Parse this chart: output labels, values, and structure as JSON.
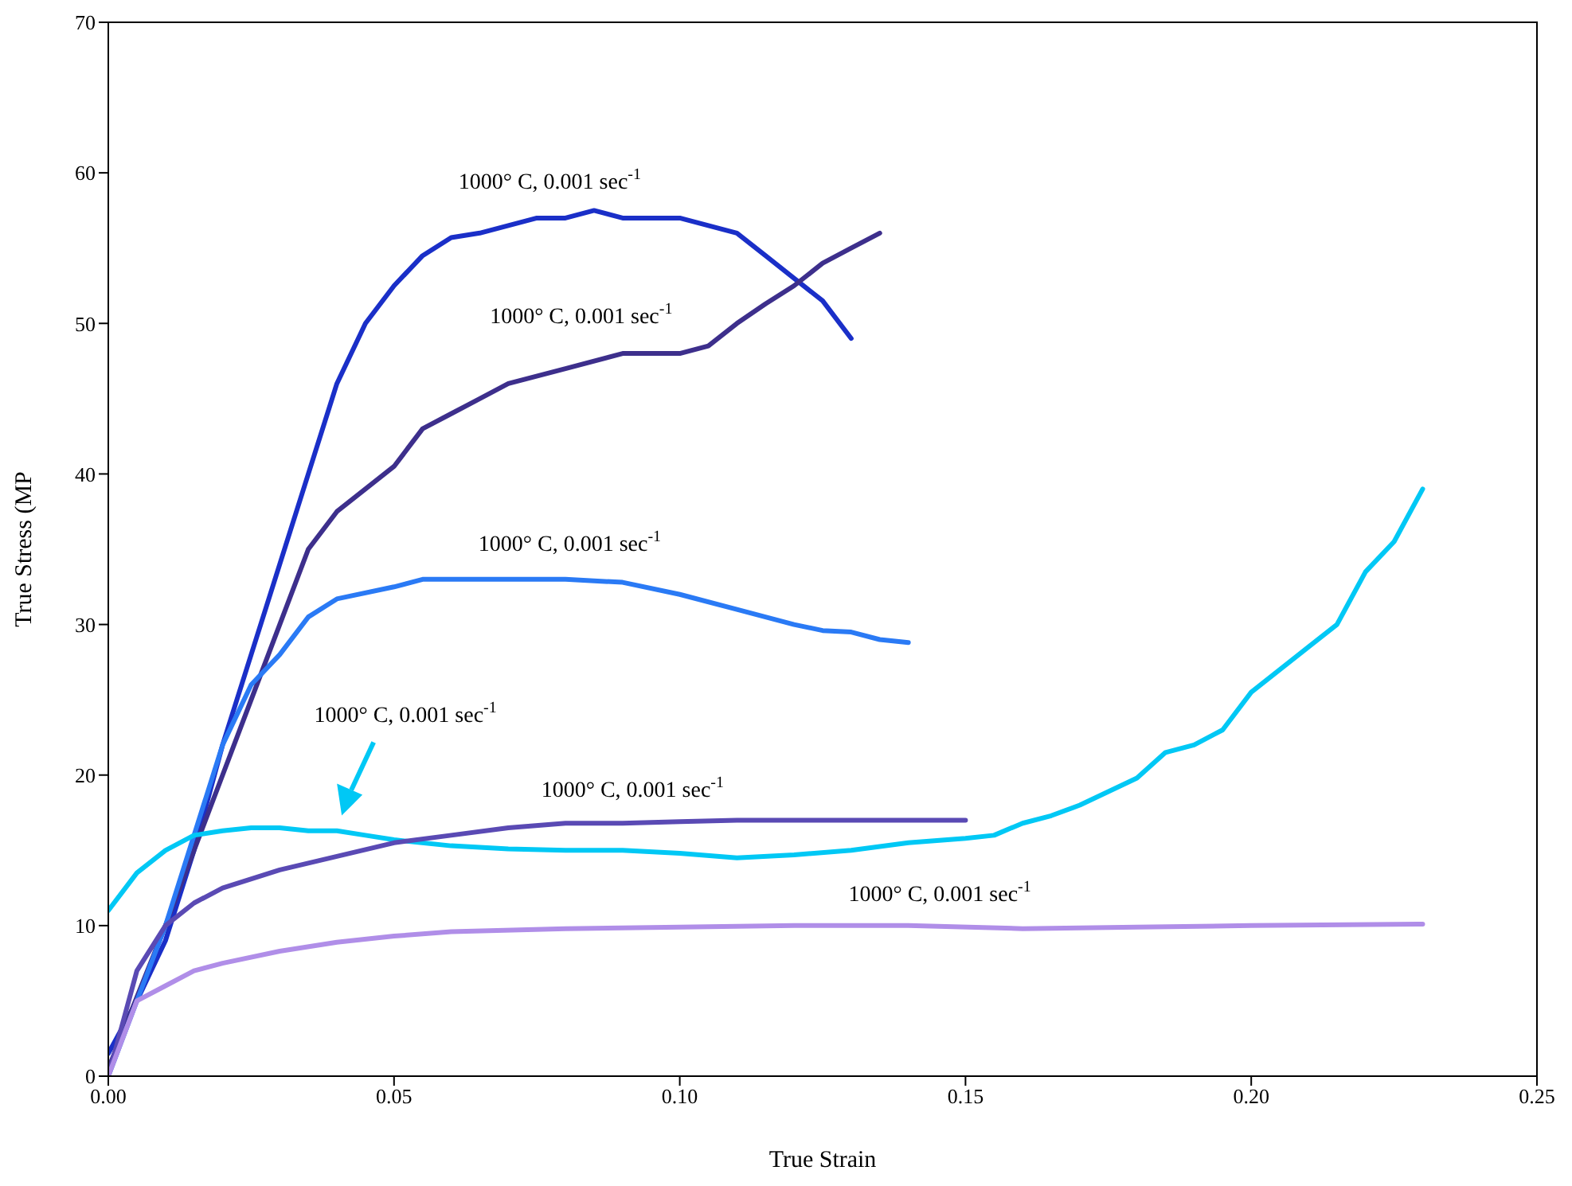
{
  "chart_data": {
    "type": "line",
    "xlabel": "True Strain",
    "ylabel": "True Stress (MP",
    "marker": "none",
    "line_style": "solid",
    "xlim": [
      0,
      0.25
    ],
    "xticks": [
      {
        "value": 0,
        "label": "0.00"
      },
      {
        "value": 0.05,
        "label": "0.05"
      },
      {
        "value": 0.1,
        "label": "0.10"
      },
      {
        "value": 0.15,
        "label": "0.15"
      },
      {
        "value": 0.2,
        "label": "0.20"
      },
      {
        "value": 0.25,
        "label": "0.25"
      }
    ],
    "ylim": [
      0,
      70
    ],
    "yticks": [
      0,
      10,
      20,
      30,
      40,
      50,
      60,
      70
    ],
    "series": [
      {
        "color": "#1a2fc8",
        "x": [
          0,
          0.005,
          0.01,
          0.015,
          0.02,
          0.025,
          0.03,
          0.035,
          0.04,
          0.045,
          0.05,
          0.055,
          0.06,
          0.065,
          0.07,
          0.075,
          0.08,
          0.085,
          0.09,
          0.095,
          0.1,
          0.105,
          0.11,
          0.115,
          0.12,
          0.125,
          0.13
        ],
        "values": [
          1.5,
          5,
          9,
          15,
          22,
          28,
          34,
          40,
          46,
          50,
          52.5,
          54.5,
          55.7,
          56,
          56.5,
          57,
          57,
          57.5,
          57,
          57,
          57,
          56.5,
          56,
          54.5,
          53,
          51.5,
          49
        ]
      },
      {
        "color": "#3d2f8c",
        "x": [
          0,
          0.01,
          0.02,
          0.025,
          0.03,
          0.035,
          0.04,
          0.05,
          0.055,
          0.06,
          0.065,
          0.07,
          0.08,
          0.09,
          0.1,
          0.105,
          0.11,
          0.115,
          0.12,
          0.125,
          0.13,
          0.135
        ],
        "values": [
          0.5,
          10,
          20,
          25,
          30,
          35,
          37.5,
          40.5,
          43,
          44,
          45,
          46,
          47,
          48,
          48,
          48.5,
          50,
          51.3,
          52.5,
          54,
          55,
          56
        ]
      },
      {
        "color": "#2a7af5",
        "x": [
          0,
          0.01,
          0.015,
          0.02,
          0.025,
          0.03,
          0.035,
          0.04,
          0.05,
          0.055,
          0.06,
          0.07,
          0.08,
          0.09,
          0.1,
          0.11,
          0.12,
          0.125,
          0.13,
          0.135,
          0.14
        ],
        "values": [
          0,
          10,
          16,
          22,
          26,
          28,
          30.5,
          31.7,
          32.5,
          33,
          33,
          33,
          33,
          32.8,
          32,
          31,
          30,
          29.6,
          29.5,
          29,
          28.8
        ]
      },
      {
        "color": "#00c8f5",
        "x": [
          0,
          0.005,
          0.01,
          0.015,
          0.02,
          0.025,
          0.03,
          0.035,
          0.04,
          0.045,
          0.05,
          0.06,
          0.07,
          0.08,
          0.09,
          0.1,
          0.11,
          0.12,
          0.13,
          0.14,
          0.15,
          0.155,
          0.16,
          0.165,
          0.17,
          0.18,
          0.185,
          0.19,
          0.195,
          0.2,
          0.21,
          0.215,
          0.22,
          0.225,
          0.23
        ],
        "values": [
          11,
          13.5,
          15,
          16,
          16.3,
          16.5,
          16.5,
          16.3,
          16.3,
          16,
          15.7,
          15.3,
          15.1,
          15,
          15,
          14.8,
          14.5,
          14.7,
          15,
          15.5,
          15.8,
          16,
          16.8,
          17.3,
          18,
          19.8,
          21.5,
          22,
          23,
          25.5,
          28.5,
          30,
          33.5,
          35.5,
          39
        ]
      },
      {
        "color": "#5a4ab4",
        "x": [
          0,
          0.005,
          0.01,
          0.015,
          0.02,
          0.03,
          0.04,
          0.05,
          0.06,
          0.07,
          0.08,
          0.09,
          0.1,
          0.11,
          0.12,
          0.13,
          0.15
        ],
        "values": [
          0,
          7,
          10,
          11.5,
          12.5,
          13.7,
          14.6,
          15.5,
          16,
          16.5,
          16.8,
          16.8,
          16.9,
          17,
          17,
          17,
          17
        ]
      },
      {
        "color": "#b08ee8",
        "x": [
          0,
          0.005,
          0.01,
          0.015,
          0.02,
          0.03,
          0.04,
          0.05,
          0.06,
          0.08,
          0.1,
          0.12,
          0.14,
          0.16,
          0.18,
          0.2,
          0.23
        ],
        "values": [
          0,
          5,
          6,
          7,
          7.5,
          8.3,
          8.9,
          9.3,
          9.6,
          9.8,
          9.9,
          10,
          10,
          9.8,
          9.9,
          10,
          10.1
        ]
      }
    ],
    "annotations": [
      "1000° C, 0.001 sec$^{-1}$",
      "1000° C, 0.001 sec$^{-1}$",
      "1000° C, 0.001 sec$^{-1}$",
      "1000° C, 0.001 sec$^{-1}$",
      "1000° C, 0.001 sec$^{-1}$",
      "1000° C, 0.001 sec$^{-1}$"
    ]
  }
}
